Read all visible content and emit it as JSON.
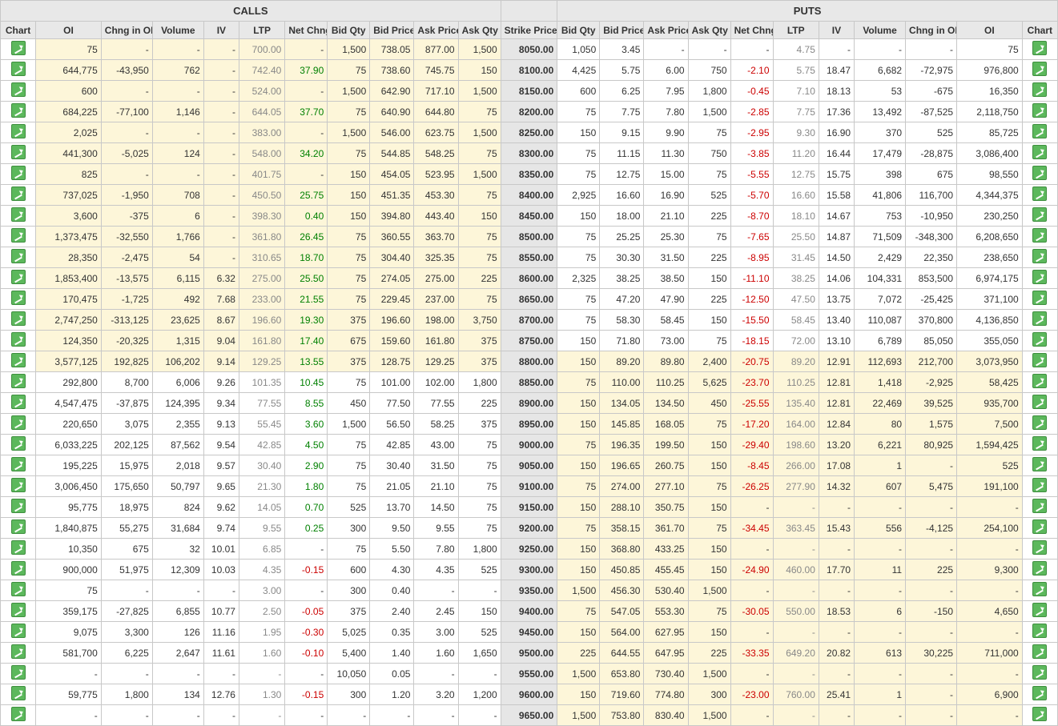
{
  "headers": {
    "calls": "CALLS",
    "puts": "PUTS",
    "cols": [
      "Chart",
      "OI",
      "Chng in OI",
      "Volume",
      "IV",
      "LTP",
      "Net Chng",
      "Bid Qty",
      "Bid Price",
      "Ask Price",
      "Ask Qty",
      "Strike Price",
      "Bid Qty",
      "Bid Price",
      "Ask Price",
      "Ask Qty",
      "Net Chng",
      "LTP",
      "IV",
      "Volume",
      "Chng in OI",
      "OI",
      "Chart"
    ]
  },
  "colors": {
    "header_bg": "#e8e8e8",
    "strike_bg": "#e6e6e6",
    "itm_bg": "#fdf6d9",
    "pos": "#008000",
    "neg": "#cc0000",
    "ltp": "#888888",
    "icon": "#5cb85c"
  },
  "atm_strike": 8800,
  "rows": [
    {
      "strike": "8050.00",
      "c_oi": "75",
      "c_chng": "-",
      "c_vol": "-",
      "c_iv": "-",
      "c_ltp": "700.00",
      "c_net": "-",
      "c_bq": "1,500",
      "c_bp": "738.05",
      "c_ap": "877.00",
      "c_aq": "1,500",
      "p_bq": "1,050",
      "p_bp": "3.45",
      "p_ap": "-",
      "p_aq": "-",
      "p_net": "-",
      "p_ltp": "4.75",
      "p_iv": "-",
      "p_vol": "-",
      "p_chng": "-",
      "p_oi": "75"
    },
    {
      "strike": "8100.00",
      "c_oi": "644,775",
      "c_chng": "-43,950",
      "c_vol": "762",
      "c_iv": "-",
      "c_ltp": "742.40",
      "c_net": "37.90",
      "c_bq": "75",
      "c_bp": "738.60",
      "c_ap": "745.75",
      "c_aq": "150",
      "p_bq": "4,425",
      "p_bp": "5.75",
      "p_ap": "6.00",
      "p_aq": "750",
      "p_net": "-2.10",
      "p_ltp": "5.75",
      "p_iv": "18.47",
      "p_vol": "6,682",
      "p_chng": "-72,975",
      "p_oi": "976,800"
    },
    {
      "strike": "8150.00",
      "c_oi": "600",
      "c_chng": "-",
      "c_vol": "-",
      "c_iv": "-",
      "c_ltp": "524.00",
      "c_net": "-",
      "c_bq": "1,500",
      "c_bp": "642.90",
      "c_ap": "717.10",
      "c_aq": "1,500",
      "p_bq": "600",
      "p_bp": "6.25",
      "p_ap": "7.95",
      "p_aq": "1,800",
      "p_net": "-0.45",
      "p_ltp": "7.10",
      "p_iv": "18.13",
      "p_vol": "53",
      "p_chng": "-675",
      "p_oi": "16,350"
    },
    {
      "strike": "8200.00",
      "c_oi": "684,225",
      "c_chng": "-77,100",
      "c_vol": "1,146",
      "c_iv": "-",
      "c_ltp": "644.05",
      "c_net": "37.70",
      "c_bq": "75",
      "c_bp": "640.90",
      "c_ap": "644.80",
      "c_aq": "75",
      "p_bq": "75",
      "p_bp": "7.75",
      "p_ap": "7.80",
      "p_aq": "1,500",
      "p_net": "-2.85",
      "p_ltp": "7.75",
      "p_iv": "17.36",
      "p_vol": "13,492",
      "p_chng": "-87,525",
      "p_oi": "2,118,750"
    },
    {
      "strike": "8250.00",
      "c_oi": "2,025",
      "c_chng": "-",
      "c_vol": "-",
      "c_iv": "-",
      "c_ltp": "383.00",
      "c_net": "-",
      "c_bq": "1,500",
      "c_bp": "546.00",
      "c_ap": "623.75",
      "c_aq": "1,500",
      "p_bq": "150",
      "p_bp": "9.15",
      "p_ap": "9.90",
      "p_aq": "75",
      "p_net": "-2.95",
      "p_ltp": "9.30",
      "p_iv": "16.90",
      "p_vol": "370",
      "p_chng": "525",
      "p_oi": "85,725"
    },
    {
      "strike": "8300.00",
      "c_oi": "441,300",
      "c_chng": "-5,025",
      "c_vol": "124",
      "c_iv": "-",
      "c_ltp": "548.00",
      "c_net": "34.20",
      "c_bq": "75",
      "c_bp": "544.85",
      "c_ap": "548.25",
      "c_aq": "75",
      "p_bq": "75",
      "p_bp": "11.15",
      "p_ap": "11.30",
      "p_aq": "750",
      "p_net": "-3.85",
      "p_ltp": "11.20",
      "p_iv": "16.44",
      "p_vol": "17,479",
      "p_chng": "-28,875",
      "p_oi": "3,086,400"
    },
    {
      "strike": "8350.00",
      "c_oi": "825",
      "c_chng": "-",
      "c_vol": "-",
      "c_iv": "-",
      "c_ltp": "401.75",
      "c_net": "-",
      "c_bq": "150",
      "c_bp": "454.05",
      "c_ap": "523.95",
      "c_aq": "1,500",
      "p_bq": "75",
      "p_bp": "12.75",
      "p_ap": "15.00",
      "p_aq": "75",
      "p_net": "-5.55",
      "p_ltp": "12.75",
      "p_iv": "15.75",
      "p_vol": "398",
      "p_chng": "675",
      "p_oi": "98,550"
    },
    {
      "strike": "8400.00",
      "c_oi": "737,025",
      "c_chng": "-1,950",
      "c_vol": "708",
      "c_iv": "-",
      "c_ltp": "450.50",
      "c_net": "25.75",
      "c_bq": "150",
      "c_bp": "451.35",
      "c_ap": "453.30",
      "c_aq": "75",
      "p_bq": "2,925",
      "p_bp": "16.60",
      "p_ap": "16.90",
      "p_aq": "525",
      "p_net": "-5.70",
      "p_ltp": "16.60",
      "p_iv": "15.58",
      "p_vol": "41,806",
      "p_chng": "116,700",
      "p_oi": "4,344,375"
    },
    {
      "strike": "8450.00",
      "c_oi": "3,600",
      "c_chng": "-375",
      "c_vol": "6",
      "c_iv": "-",
      "c_ltp": "398.30",
      "c_net": "0.40",
      "c_bq": "150",
      "c_bp": "394.80",
      "c_ap": "443.40",
      "c_aq": "150",
      "p_bq": "150",
      "p_bp": "18.00",
      "p_ap": "21.10",
      "p_aq": "225",
      "p_net": "-8.70",
      "p_ltp": "18.10",
      "p_iv": "14.67",
      "p_vol": "753",
      "p_chng": "-10,950",
      "p_oi": "230,250"
    },
    {
      "strike": "8500.00",
      "c_oi": "1,373,475",
      "c_chng": "-32,550",
      "c_vol": "1,766",
      "c_iv": "-",
      "c_ltp": "361.80",
      "c_net": "26.45",
      "c_bq": "75",
      "c_bp": "360.55",
      "c_ap": "363.70",
      "c_aq": "75",
      "p_bq": "75",
      "p_bp": "25.25",
      "p_ap": "25.30",
      "p_aq": "75",
      "p_net": "-7.65",
      "p_ltp": "25.50",
      "p_iv": "14.87",
      "p_vol": "71,509",
      "p_chng": "-348,300",
      "p_oi": "6,208,650"
    },
    {
      "strike": "8550.00",
      "c_oi": "28,350",
      "c_chng": "-2,475",
      "c_vol": "54",
      "c_iv": "-",
      "c_ltp": "310.65",
      "c_net": "18.70",
      "c_bq": "75",
      "c_bp": "304.40",
      "c_ap": "325.35",
      "c_aq": "75",
      "p_bq": "75",
      "p_bp": "30.30",
      "p_ap": "31.50",
      "p_aq": "225",
      "p_net": "-8.95",
      "p_ltp": "31.45",
      "p_iv": "14.50",
      "p_vol": "2,429",
      "p_chng": "22,350",
      "p_oi": "238,650"
    },
    {
      "strike": "8600.00",
      "c_oi": "1,853,400",
      "c_chng": "-13,575",
      "c_vol": "6,115",
      "c_iv": "6.32",
      "c_ltp": "275.00",
      "c_net": "25.50",
      "c_bq": "75",
      "c_bp": "274.05",
      "c_ap": "275.00",
      "c_aq": "225",
      "p_bq": "2,325",
      "p_bp": "38.25",
      "p_ap": "38.50",
      "p_aq": "150",
      "p_net": "-11.10",
      "p_ltp": "38.25",
      "p_iv": "14.06",
      "p_vol": "104,331",
      "p_chng": "853,500",
      "p_oi": "6,974,175"
    },
    {
      "strike": "8650.00",
      "c_oi": "170,475",
      "c_chng": "-1,725",
      "c_vol": "492",
      "c_iv": "7.68",
      "c_ltp": "233.00",
      "c_net": "21.55",
      "c_bq": "75",
      "c_bp": "229.45",
      "c_ap": "237.00",
      "c_aq": "75",
      "p_bq": "75",
      "p_bp": "47.20",
      "p_ap": "47.90",
      "p_aq": "225",
      "p_net": "-12.50",
      "p_ltp": "47.50",
      "p_iv": "13.75",
      "p_vol": "7,072",
      "p_chng": "-25,425",
      "p_oi": "371,100"
    },
    {
      "strike": "8700.00",
      "c_oi": "2,747,250",
      "c_chng": "-313,125",
      "c_vol": "23,625",
      "c_iv": "8.67",
      "c_ltp": "196.60",
      "c_net": "19.30",
      "c_bq": "375",
      "c_bp": "196.60",
      "c_ap": "198.00",
      "c_aq": "3,750",
      "p_bq": "75",
      "p_bp": "58.30",
      "p_ap": "58.45",
      "p_aq": "150",
      "p_net": "-15.50",
      "p_ltp": "58.45",
      "p_iv": "13.40",
      "p_vol": "110,087",
      "p_chng": "370,800",
      "p_oi": "4,136,850"
    },
    {
      "strike": "8750.00",
      "c_oi": "124,350",
      "c_chng": "-20,325",
      "c_vol": "1,315",
      "c_iv": "9.04",
      "c_ltp": "161.80",
      "c_net": "17.40",
      "c_bq": "675",
      "c_bp": "159.60",
      "c_ap": "161.80",
      "c_aq": "375",
      "p_bq": "150",
      "p_bp": "71.80",
      "p_ap": "73.00",
      "p_aq": "75",
      "p_net": "-18.15",
      "p_ltp": "72.00",
      "p_iv": "13.10",
      "p_vol": "6,789",
      "p_chng": "85,050",
      "p_oi": "355,050"
    },
    {
      "strike": "8800.00",
      "c_oi": "3,577,125",
      "c_chng": "192,825",
      "c_vol": "106,202",
      "c_iv": "9.14",
      "c_ltp": "129.25",
      "c_net": "13.55",
      "c_bq": "375",
      "c_bp": "128.75",
      "c_ap": "129.25",
      "c_aq": "375",
      "p_bq": "150",
      "p_bp": "89.20",
      "p_ap": "89.80",
      "p_aq": "2,400",
      "p_net": "-20.75",
      "p_ltp": "89.20",
      "p_iv": "12.91",
      "p_vol": "112,693",
      "p_chng": "212,700",
      "p_oi": "3,073,950"
    },
    {
      "strike": "8850.00",
      "c_oi": "292,800",
      "c_chng": "8,700",
      "c_vol": "6,006",
      "c_iv": "9.26",
      "c_ltp": "101.35",
      "c_net": "10.45",
      "c_bq": "75",
      "c_bp": "101.00",
      "c_ap": "102.00",
      "c_aq": "1,800",
      "p_bq": "75",
      "p_bp": "110.00",
      "p_ap": "110.25",
      "p_aq": "5,625",
      "p_net": "-23.70",
      "p_ltp": "110.25",
      "p_iv": "12.81",
      "p_vol": "1,418",
      "p_chng": "-2,925",
      "p_oi": "58,425"
    },
    {
      "strike": "8900.00",
      "c_oi": "4,547,475",
      "c_chng": "-37,875",
      "c_vol": "124,395",
      "c_iv": "9.34",
      "c_ltp": "77.55",
      "c_net": "8.55",
      "c_bq": "450",
      "c_bp": "77.50",
      "c_ap": "77.55",
      "c_aq": "225",
      "p_bq": "150",
      "p_bp": "134.05",
      "p_ap": "134.50",
      "p_aq": "450",
      "p_net": "-25.55",
      "p_ltp": "135.40",
      "p_iv": "12.81",
      "p_vol": "22,469",
      "p_chng": "39,525",
      "p_oi": "935,700"
    },
    {
      "strike": "8950.00",
      "c_oi": "220,650",
      "c_chng": "3,075",
      "c_vol": "2,355",
      "c_iv": "9.13",
      "c_ltp": "55.45",
      "c_net": "3.60",
      "c_bq": "1,500",
      "c_bp": "56.50",
      "c_ap": "58.25",
      "c_aq": "375",
      "p_bq": "150",
      "p_bp": "145.85",
      "p_ap": "168.05",
      "p_aq": "75",
      "p_net": "-17.20",
      "p_ltp": "164.00",
      "p_iv": "12.84",
      "p_vol": "80",
      "p_chng": "1,575",
      "p_oi": "7,500"
    },
    {
      "strike": "9000.00",
      "c_oi": "6,033,225",
      "c_chng": "202,125",
      "c_vol": "87,562",
      "c_iv": "9.54",
      "c_ltp": "42.85",
      "c_net": "4.50",
      "c_bq": "75",
      "c_bp": "42.85",
      "c_ap": "43.00",
      "c_aq": "75",
      "p_bq": "75",
      "p_bp": "196.35",
      "p_ap": "199.50",
      "p_aq": "150",
      "p_net": "-29.40",
      "p_ltp": "198.60",
      "p_iv": "13.20",
      "p_vol": "6,221",
      "p_chng": "80,925",
      "p_oi": "1,594,425"
    },
    {
      "strike": "9050.00",
      "c_oi": "195,225",
      "c_chng": "15,975",
      "c_vol": "2,018",
      "c_iv": "9.57",
      "c_ltp": "30.40",
      "c_net": "2.90",
      "c_bq": "75",
      "c_bp": "30.40",
      "c_ap": "31.50",
      "c_aq": "75",
      "p_bq": "150",
      "p_bp": "196.65",
      "p_ap": "260.75",
      "p_aq": "150",
      "p_net": "-8.45",
      "p_ltp": "266.00",
      "p_iv": "17.08",
      "p_vol": "1",
      "p_chng": "-",
      "p_oi": "525"
    },
    {
      "strike": "9100.00",
      "c_oi": "3,006,450",
      "c_chng": "175,650",
      "c_vol": "50,797",
      "c_iv": "9.65",
      "c_ltp": "21.30",
      "c_net": "1.80",
      "c_bq": "75",
      "c_bp": "21.05",
      "c_ap": "21.10",
      "c_aq": "75",
      "p_bq": "75",
      "p_bp": "274.00",
      "p_ap": "277.10",
      "p_aq": "75",
      "p_net": "-26.25",
      "p_ltp": "277.90",
      "p_iv": "14.32",
      "p_vol": "607",
      "p_chng": "5,475",
      "p_oi": "191,100"
    },
    {
      "strike": "9150.00",
      "c_oi": "95,775",
      "c_chng": "18,975",
      "c_vol": "824",
      "c_iv": "9.62",
      "c_ltp": "14.05",
      "c_net": "0.70",
      "c_bq": "525",
      "c_bp": "13.70",
      "c_ap": "14.50",
      "c_aq": "75",
      "p_bq": "150",
      "p_bp": "288.10",
      "p_ap": "350.75",
      "p_aq": "150",
      "p_net": "-",
      "p_ltp": "-",
      "p_iv": "-",
      "p_vol": "-",
      "p_chng": "-",
      "p_oi": "-"
    },
    {
      "strike": "9200.00",
      "c_oi": "1,840,875",
      "c_chng": "55,275",
      "c_vol": "31,684",
      "c_iv": "9.74",
      "c_ltp": "9.55",
      "c_net": "0.25",
      "c_bq": "300",
      "c_bp": "9.50",
      "c_ap": "9.55",
      "c_aq": "75",
      "p_bq": "75",
      "p_bp": "358.15",
      "p_ap": "361.70",
      "p_aq": "75",
      "p_net": "-34.45",
      "p_ltp": "363.45",
      "p_iv": "15.43",
      "p_vol": "556",
      "p_chng": "-4,125",
      "p_oi": "254,100"
    },
    {
      "strike": "9250.00",
      "c_oi": "10,350",
      "c_chng": "675",
      "c_vol": "32",
      "c_iv": "10.01",
      "c_ltp": "6.85",
      "c_net": "-",
      "c_bq": "75",
      "c_bp": "5.50",
      "c_ap": "7.80",
      "c_aq": "1,800",
      "p_bq": "150",
      "p_bp": "368.80",
      "p_ap": "433.25",
      "p_aq": "150",
      "p_net": "-",
      "p_ltp": "-",
      "p_iv": "-",
      "p_vol": "-",
      "p_chng": "-",
      "p_oi": "-"
    },
    {
      "strike": "9300.00",
      "c_oi": "900,000",
      "c_chng": "51,975",
      "c_vol": "12,309",
      "c_iv": "10.03",
      "c_ltp": "4.35",
      "c_net": "-0.15",
      "c_bq": "600",
      "c_bp": "4.30",
      "c_ap": "4.35",
      "c_aq": "525",
      "p_bq": "150",
      "p_bp": "450.85",
      "p_ap": "455.45",
      "p_aq": "150",
      "p_net": "-24.90",
      "p_ltp": "460.00",
      "p_iv": "17.70",
      "p_vol": "11",
      "p_chng": "225",
      "p_oi": "9,300"
    },
    {
      "strike": "9350.00",
      "c_oi": "75",
      "c_chng": "-",
      "c_vol": "-",
      "c_iv": "-",
      "c_ltp": "3.00",
      "c_net": "-",
      "c_bq": "300",
      "c_bp": "0.40",
      "c_ap": "-",
      "c_aq": "-",
      "p_bq": "1,500",
      "p_bp": "456.30",
      "p_ap": "530.40",
      "p_aq": "1,500",
      "p_net": "-",
      "p_ltp": "-",
      "p_iv": "-",
      "p_vol": "-",
      "p_chng": "-",
      "p_oi": "-"
    },
    {
      "strike": "9400.00",
      "c_oi": "359,175",
      "c_chng": "-27,825",
      "c_vol": "6,855",
      "c_iv": "10.77",
      "c_ltp": "2.50",
      "c_net": "-0.05",
      "c_bq": "375",
      "c_bp": "2.40",
      "c_ap": "2.45",
      "c_aq": "150",
      "p_bq": "75",
      "p_bp": "547.05",
      "p_ap": "553.30",
      "p_aq": "75",
      "p_net": "-30.05",
      "p_ltp": "550.00",
      "p_iv": "18.53",
      "p_vol": "6",
      "p_chng": "-150",
      "p_oi": "4,650"
    },
    {
      "strike": "9450.00",
      "c_oi": "9,075",
      "c_chng": "3,300",
      "c_vol": "126",
      "c_iv": "11.16",
      "c_ltp": "1.95",
      "c_net": "-0.30",
      "c_bq": "5,025",
      "c_bp": "0.35",
      "c_ap": "3.00",
      "c_aq": "525",
      "p_bq": "150",
      "p_bp": "564.00",
      "p_ap": "627.95",
      "p_aq": "150",
      "p_net": "-",
      "p_ltp": "-",
      "p_iv": "-",
      "p_vol": "-",
      "p_chng": "-",
      "p_oi": "-"
    },
    {
      "strike": "9500.00",
      "c_oi": "581,700",
      "c_chng": "6,225",
      "c_vol": "2,647",
      "c_iv": "11.61",
      "c_ltp": "1.60",
      "c_net": "-0.10",
      "c_bq": "5,400",
      "c_bp": "1.40",
      "c_ap": "1.60",
      "c_aq": "1,650",
      "p_bq": "225",
      "p_bp": "644.55",
      "p_ap": "647.95",
      "p_aq": "225",
      "p_net": "-33.35",
      "p_ltp": "649.20",
      "p_iv": "20.82",
      "p_vol": "613",
      "p_chng": "30,225",
      "p_oi": "711,000"
    },
    {
      "strike": "9550.00",
      "c_oi": "-",
      "c_chng": "-",
      "c_vol": "-",
      "c_iv": "-",
      "c_ltp": "-",
      "c_net": "-",
      "c_bq": "10,050",
      "c_bp": "0.05",
      "c_ap": "-",
      "c_aq": "-",
      "p_bq": "1,500",
      "p_bp": "653.80",
      "p_ap": "730.40",
      "p_aq": "1,500",
      "p_net": "-",
      "p_ltp": "-",
      "p_iv": "-",
      "p_vol": "-",
      "p_chng": "-",
      "p_oi": "-"
    },
    {
      "strike": "9600.00",
      "c_oi": "59,775",
      "c_chng": "1,800",
      "c_vol": "134",
      "c_iv": "12.76",
      "c_ltp": "1.30",
      "c_net": "-0.15",
      "c_bq": "300",
      "c_bp": "1.20",
      "c_ap": "3.20",
      "c_aq": "1,200",
      "p_bq": "150",
      "p_bp": "719.60",
      "p_ap": "774.80",
      "p_aq": "300",
      "p_net": "-23.00",
      "p_ltp": "760.00",
      "p_iv": "25.41",
      "p_vol": "1",
      "p_chng": "-",
      "p_oi": "6,900"
    },
    {
      "strike": "9650.00",
      "c_oi": "-",
      "c_chng": "-",
      "c_vol": "-",
      "c_iv": "-",
      "c_ltp": "-",
      "c_net": "-",
      "c_bq": "-",
      "c_bp": "-",
      "c_ap": "-",
      "c_aq": "-",
      "p_bq": "1,500",
      "p_bp": "753.80",
      "p_ap": "830.40",
      "p_aq": "1,500",
      "p_net": "-",
      "p_ltp": "-",
      "p_iv": "-",
      "p_vol": "-",
      "p_chng": "-",
      "p_oi": "-"
    }
  ]
}
